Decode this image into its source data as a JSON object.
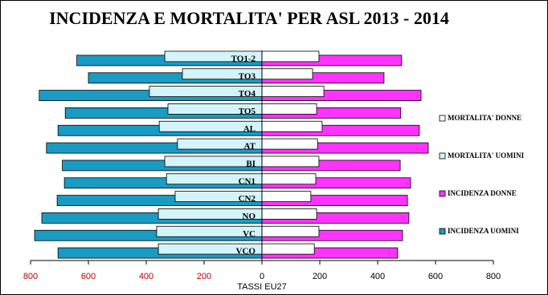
{
  "chart_data": {
    "type": "butterfly-bar",
    "title": "INCIDENZA E MORTALITA' PER ASL 2013 - 2014",
    "x_label": "TASSI EU27",
    "categories": [
      "TO1-2",
      "TO3",
      "TO4",
      "TO5",
      "AL",
      "AT",
      "BI",
      "CN1",
      "CN2",
      "NO",
      "VC",
      "VCO"
    ],
    "series": [
      {
        "name": "MORTALITA' DONNE",
        "color": "#ffffff",
        "values": [
          197,
          175,
          214,
          189,
          208,
          192,
          197,
          186,
          169,
          189,
          197,
          181
        ]
      },
      {
        "name": "MORTALITA' UOMINI",
        "color": "#d4f4fb",
        "values": [
          -336,
          -275,
          -389,
          -325,
          -355,
          -292,
          -336,
          -330,
          -300,
          -358,
          -364,
          -358
        ]
      },
      {
        "name": "INCIDENZA DONNE",
        "color": "#ff33ff",
        "values": [
          483,
          422,
          550,
          480,
          544,
          575,
          478,
          514,
          503,
          508,
          486,
          469
        ]
      },
      {
        "name": "INCIDENZA UOMINI",
        "color": "#1a9bc4",
        "values": [
          -640,
          -600,
          -770,
          -680,
          -705,
          -745,
          -690,
          -683,
          -708,
          -761,
          -786,
          -705
        ]
      }
    ],
    "xlim": [
      -800,
      800
    ],
    "xticks": [
      {
        "value": -800,
        "label": "800"
      },
      {
        "value": -600,
        "label": "600"
      },
      {
        "value": -400,
        "label": "400"
      },
      {
        "value": -200,
        "label": "200"
      },
      0,
      200,
      400,
      600,
      800
    ],
    "legend": "right"
  }
}
